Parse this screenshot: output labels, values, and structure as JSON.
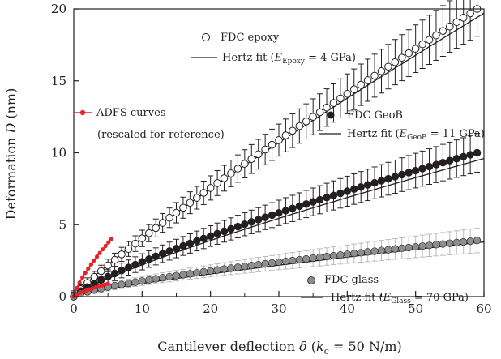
{
  "chart_data": {
    "type": "scatter",
    "title": "",
    "xlabel": {
      "pre": "Cantilever deflection ",
      "sym": "δ",
      "open": " (",
      "k": "k",
      "ksub": "c",
      "rest": " = 50 N/m)"
    },
    "ylabel": {
      "pre": "Deformation ",
      "sym": "D",
      "rest": " (nm)"
    },
    "xlim": [
      0,
      60
    ],
    "ylim": [
      0,
      20
    ],
    "xticks": [
      "0",
      "10",
      "20",
      "30",
      "40",
      "50",
      "60"
    ],
    "yticks": [
      "0",
      "5",
      "10",
      "15",
      "20"
    ],
    "grid": false,
    "legend": {
      "epoxy": {
        "points": "FDC epoxy",
        "fit_pre": "Hertz fit (",
        "fit_E": "E",
        "fit_sub": "Epoxy",
        "fit_post": " = 4 GPa)"
      },
      "adfs": {
        "line1": "ADFS curves",
        "line2": "(rescaled for reference)"
      },
      "geob": {
        "points": "FDC GeoB",
        "fit_pre": "Hertz fit (",
        "fit_E": "E",
        "fit_sub": "GeoB",
        "fit_post": " = 11 GPa)"
      },
      "glass": {
        "points": "FDC glass",
        "fit_pre": "Hertz fit (",
        "fit_E": "E",
        "fit_sub": "Glass",
        "fit_post": " = 70 GPa)"
      }
    },
    "series": [
      {
        "name": "FDC epoxy",
        "kind": "points",
        "marker": "open-circle",
        "x_start": 0,
        "x_step": 1,
        "count": 60,
        "y_end": 20.0,
        "y_exponent": 0.9,
        "error_start": 0.3,
        "error_end": 1.9,
        "color": "#231f20"
      },
      {
        "name": "FDC GeoB",
        "kind": "points",
        "marker": "filled-circle",
        "x_start": 0,
        "x_step": 1,
        "count": 60,
        "y_end": 10.0,
        "y_exponent": 0.8,
        "error_start": 0.4,
        "error_end": 1.35,
        "color": "#231f20"
      },
      {
        "name": "FDC glass",
        "kind": "points",
        "marker": "gray-circle",
        "x_start": 0,
        "x_step": 1,
        "count": 60,
        "y_end": 3.9,
        "y_exponent": 0.72,
        "error_start": 0.2,
        "error_end": 0.85,
        "color": "#8d8e90",
        "error_color": "#b9babc"
      },
      {
        "name": "Hertz fit epoxy",
        "kind": "fit",
        "x_start": 0,
        "x_end": 60,
        "y_end": 19.7,
        "y_exponent": 0.88,
        "color": "#231f20"
      },
      {
        "name": "Hertz fit GeoB",
        "kind": "fit",
        "x_start": 0,
        "x_end": 60,
        "y_end": 9.6,
        "y_exponent": 0.82,
        "color": "#231f20"
      },
      {
        "name": "Hertz fit glass",
        "kind": "fit",
        "x_start": 0,
        "x_end": 60,
        "y_end": 3.8,
        "y_exponent": 0.8,
        "color": "#231f20"
      },
      {
        "name": "ADFS curves",
        "kind": "adfs",
        "color": "#e8202a",
        "curves": [
          {
            "x_end": 5.5,
            "y_end": 4.0,
            "y_exponent": 0.75,
            "count": 14
          },
          {
            "x_end": 5.0,
            "y_end": 0.9,
            "y_exponent": 0.75,
            "count": 12
          }
        ]
      }
    ]
  }
}
